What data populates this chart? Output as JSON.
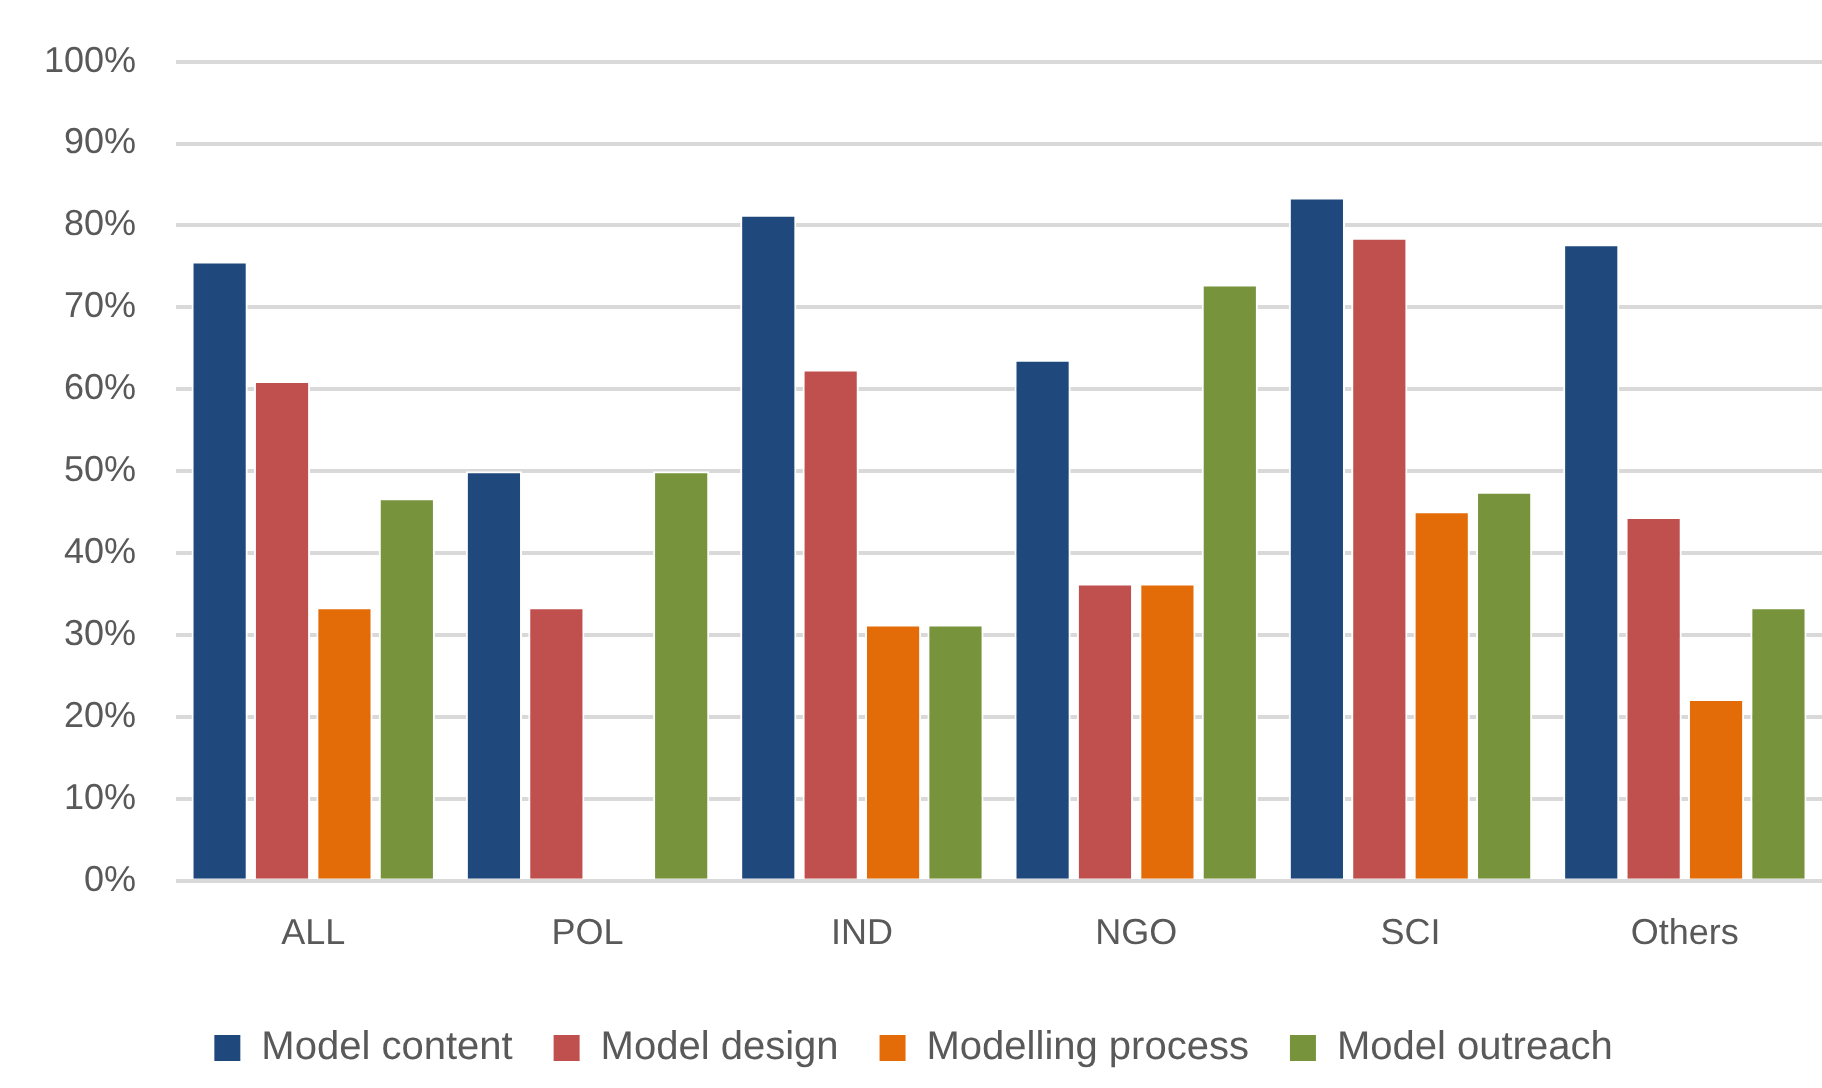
{
  "chart_data": {
    "type": "bar",
    "categories": [
      "ALL",
      "POL",
      "IND",
      "NGO",
      "SCI",
      "Others"
    ],
    "series": [
      {
        "name": "Model content",
        "color": "#1f497d",
        "values": [
          75.6,
          50,
          81.3,
          63.6,
          83.4,
          77.7
        ]
      },
      {
        "name": "Model design",
        "color": "#c0504d",
        "values": [
          61,
          33.4,
          62.4,
          36.3,
          78.5,
          44.4
        ]
      },
      {
        "name": "Modelling process",
        "color": "#e36c09",
        "values": [
          33.4,
          0,
          31.3,
          36.3,
          45.1,
          22.2
        ]
      },
      {
        "name": "Model outreach",
        "color": "#77933c",
        "values": [
          46.7,
          50,
          31.3,
          72.8,
          47.5,
          33.4
        ]
      }
    ],
    "ylim": [
      0,
      100
    ],
    "yticks": [
      {
        "value": 0,
        "label": "0%"
      },
      {
        "value": 10,
        "label": "10%"
      },
      {
        "value": 20,
        "label": "20%"
      },
      {
        "value": 30,
        "label": "30%"
      },
      {
        "value": 40,
        "label": "40%"
      },
      {
        "value": 50,
        "label": "50%"
      },
      {
        "value": 60,
        "label": "60%"
      },
      {
        "value": 70,
        "label": "70%"
      },
      {
        "value": 80,
        "label": "80%"
      },
      {
        "value": 90,
        "label": "90%"
      },
      {
        "value": 100,
        "label": "100%"
      }
    ],
    "grid": "y",
    "legend": "bottom"
  }
}
